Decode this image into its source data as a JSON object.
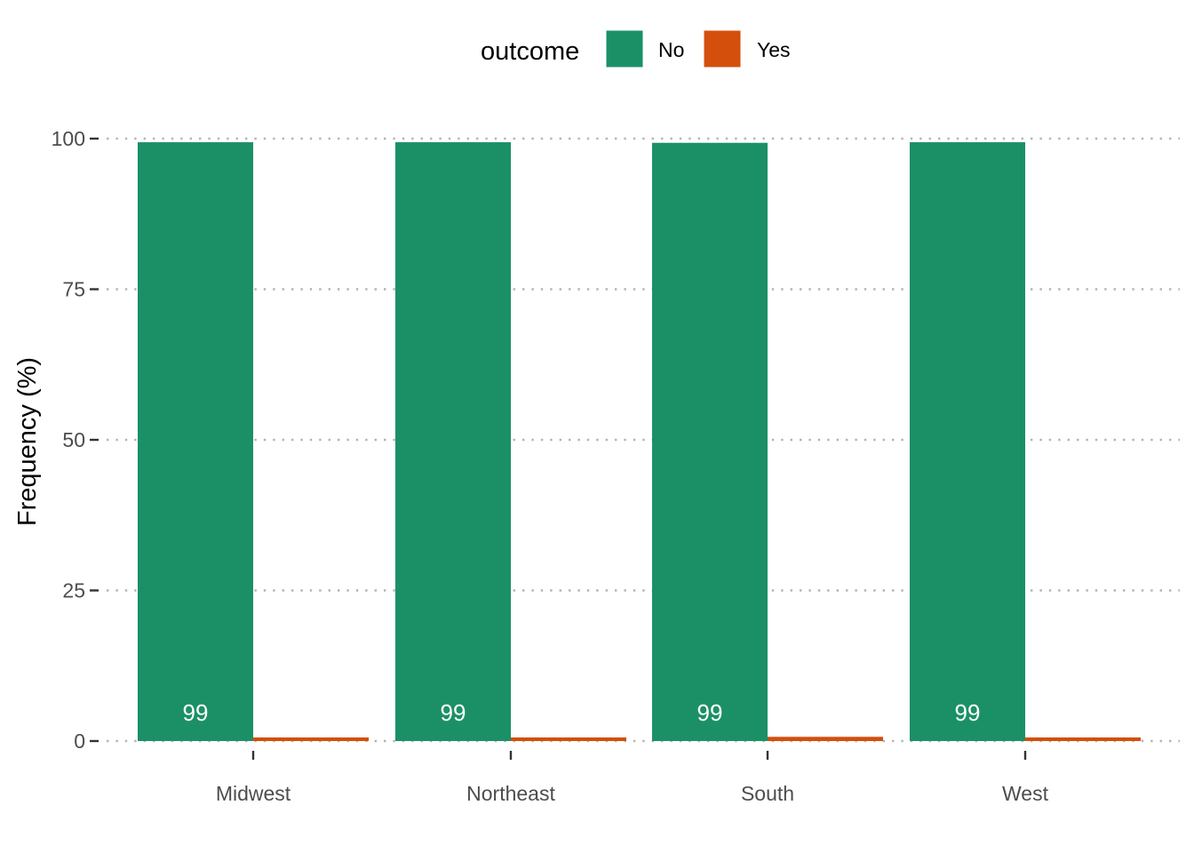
{
  "chart_data": {
    "type": "bar",
    "categories": [
      "Midwest",
      "Northeast",
      "South",
      "West"
    ],
    "series": [
      {
        "name": "No",
        "values": [
          99.4,
          99.4,
          99.3,
          99.4
        ],
        "color": "#1b9066",
        "labels": [
          "99",
          "99",
          "99",
          "99"
        ]
      },
      {
        "name": "Yes",
        "values": [
          0.6,
          0.6,
          0.7,
          0.6
        ],
        "color": "#d44f0c"
      }
    ],
    "legend_title": "outcome",
    "legend_position": "top",
    "xlabel": "",
    "ylabel": "Frequency (%)",
    "ylim": [
      0,
      100
    ],
    "yticks": [
      0,
      25,
      50,
      75,
      100
    ],
    "grid": "horizontal-dotted"
  }
}
